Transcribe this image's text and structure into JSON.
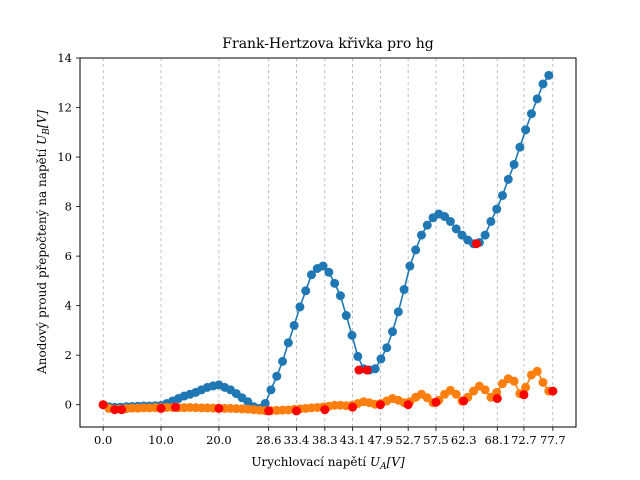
{
  "chart_data": {
    "type": "line",
    "title": "Frank-Hertzova křivka pro hg",
    "xlabel_text": "Urychlovací napětí",
    "xlabel_math": "U",
    "xlabel_sub": "A",
    "xlabel_unit": "[V]",
    "ylabel_text": "Anodový proud přepočtený na napětí",
    "ylabel_math": "U",
    "ylabel_sub": "B",
    "ylabel_unit": "[V]",
    "xlim": [
      -4.0,
      81.7
    ],
    "ylim": [
      -0.9,
      14.0
    ],
    "xticks": [
      0.0,
      10.0,
      20.0,
      28.6,
      33.4,
      38.3,
      43.1,
      47.9,
      52.7,
      57.5,
      62.3,
      68.1,
      72.7,
      77.7
    ],
    "xtick_labels": [
      "0.0",
      "10.0",
      "20.0",
      "28.6",
      "33.4",
      "38.3",
      "43.1",
      "47.9",
      "52.7",
      "57.5",
      "62.3",
      "68.1",
      "72.7",
      "77.7"
    ],
    "yticks": [
      0,
      2,
      4,
      6,
      8,
      10,
      12,
      14
    ],
    "ytick_labels": [
      "0",
      "2",
      "4",
      "6",
      "8",
      "10",
      "12",
      "14"
    ],
    "grid": "vertical dashed lines at x ticks",
    "series": [
      {
        "color": "#1f77b4",
        "style": "line with markers",
        "x": [
          0.0,
          1.0,
          2.0,
          3.0,
          4.0,
          5.0,
          6.0,
          7.0,
          8.0,
          9.0,
          10.0,
          11.0,
          12.0,
          13.0,
          14.0,
          15.0,
          16.0,
          17.0,
          18.0,
          19.0,
          20.0,
          21.0,
          22.0,
          23.0,
          24.0,
          25.0,
          26.0,
          27.0,
          28.0,
          29.0,
          30.0,
          31.0,
          32.0,
          33.0,
          34.0,
          35.0,
          36.0,
          37.0,
          38.0,
          39.0,
          40.0,
          41.0,
          42.0,
          43.0,
          44.0,
          45.0,
          46.0,
          47.0,
          48.0,
          49.0,
          50.0,
          51.0,
          52.0,
          53.0,
          54.0,
          55.0,
          56.0,
          57.0,
          58.0,
          59.0,
          60.0,
          61.0,
          62.0,
          63.0,
          64.0,
          65.0,
          66.0,
          67.0,
          68.0,
          69.0,
          70.0,
          71.0,
          72.0,
          73.0,
          74.0,
          75.0,
          76.0,
          77.0
        ],
        "y": [
          0.0,
          -0.08,
          -0.1,
          -0.1,
          -0.08,
          -0.07,
          -0.06,
          -0.05,
          -0.05,
          -0.04,
          -0.03,
          0.05,
          0.15,
          0.25,
          0.35,
          0.42,
          0.5,
          0.6,
          0.7,
          0.76,
          0.8,
          0.7,
          0.6,
          0.45,
          0.28,
          0.12,
          -0.08,
          -0.15,
          0.05,
          0.6,
          1.15,
          1.75,
          2.5,
          3.2,
          3.95,
          4.6,
          5.25,
          5.5,
          5.6,
          5.35,
          4.9,
          4.4,
          3.6,
          2.8,
          1.95,
          1.45,
          1.4,
          1.45,
          1.85,
          2.3,
          2.95,
          3.75,
          4.65,
          5.6,
          6.25,
          6.85,
          7.25,
          7.55,
          7.7,
          7.6,
          7.4,
          7.1,
          6.85,
          6.65,
          6.5,
          6.55,
          6.85,
          7.4,
          7.9,
          8.45,
          9.1,
          9.7,
          10.4,
          11.1,
          11.75,
          12.35,
          12.95,
          13.3
        ]
      },
      {
        "color": "#ff7f0e",
        "style": "line with markers",
        "x": [
          0.0,
          1.0,
          2.0,
          3.0,
          4.0,
          5.0,
          6.0,
          7.0,
          8.0,
          9.0,
          10.0,
          11.0,
          12.0,
          13.0,
          14.0,
          15.0,
          16.0,
          17.0,
          18.0,
          19.0,
          20.0,
          21.0,
          22.0,
          23.0,
          24.0,
          25.0,
          26.0,
          27.0,
          28.0,
          29.0,
          30.0,
          31.0,
          32.0,
          33.0,
          34.0,
          35.0,
          36.0,
          37.0,
          38.0,
          39.0,
          40.0,
          41.0,
          42.0,
          43.0,
          44.0,
          45.0,
          46.0,
          47.0,
          48.0,
          49.0,
          50.0,
          51.0,
          52.0,
          53.0,
          54.0,
          55.0,
          56.0,
          57.0,
          58.0,
          59.0,
          60.0,
          61.0,
          62.0,
          63.0,
          64.0,
          65.0,
          66.0,
          67.0,
          68.0,
          69.0,
          70.0,
          71.0,
          72.0,
          73.0,
          74.0,
          75.0,
          76.0,
          77.0
        ],
        "y": [
          0.0,
          -0.15,
          -0.18,
          -0.18,
          -0.16,
          -0.14,
          -0.14,
          -0.13,
          -0.13,
          -0.12,
          -0.12,
          -0.11,
          -0.11,
          -0.12,
          -0.12,
          -0.11,
          -0.12,
          -0.13,
          -0.13,
          -0.14,
          -0.14,
          -0.15,
          -0.15,
          -0.16,
          -0.17,
          -0.18,
          -0.2,
          -0.22,
          -0.24,
          -0.24,
          -0.23,
          -0.22,
          -0.21,
          -0.19,
          -0.17,
          -0.15,
          -0.13,
          -0.11,
          -0.09,
          -0.06,
          -0.02,
          -0.02,
          -0.04,
          -0.02,
          0.05,
          0.12,
          0.08,
          0.02,
          0.05,
          0.15,
          0.25,
          0.18,
          0.08,
          0.12,
          0.3,
          0.42,
          0.28,
          0.08,
          0.18,
          0.42,
          0.58,
          0.42,
          0.15,
          0.3,
          0.55,
          0.75,
          0.6,
          0.3,
          0.5,
          0.85,
          1.05,
          0.95,
          0.45,
          0.7,
          1.2,
          1.35,
          0.9,
          0.55
        ]
      }
    ],
    "highlight_points": {
      "color": "#ff0000",
      "points": [
        [
          0.0,
          0.0
        ],
        [
          2.0,
          -0.2
        ],
        [
          3.2,
          -0.2
        ],
        [
          10.0,
          -0.15
        ],
        [
          12.5,
          -0.1
        ],
        [
          20.0,
          -0.15
        ],
        [
          28.6,
          -0.25
        ],
        [
          33.4,
          -0.25
        ],
        [
          38.3,
          -0.2
        ],
        [
          43.1,
          -0.1
        ],
        [
          44.2,
          1.4
        ],
        [
          45.6,
          1.4
        ],
        [
          47.9,
          0.0
        ],
        [
          52.7,
          0.0
        ],
        [
          57.5,
          0.1
        ],
        [
          62.3,
          0.15
        ],
        [
          64.5,
          6.5
        ],
        [
          68.1,
          0.25
        ],
        [
          72.7,
          0.4
        ],
        [
          77.7,
          0.55
        ]
      ]
    }
  }
}
